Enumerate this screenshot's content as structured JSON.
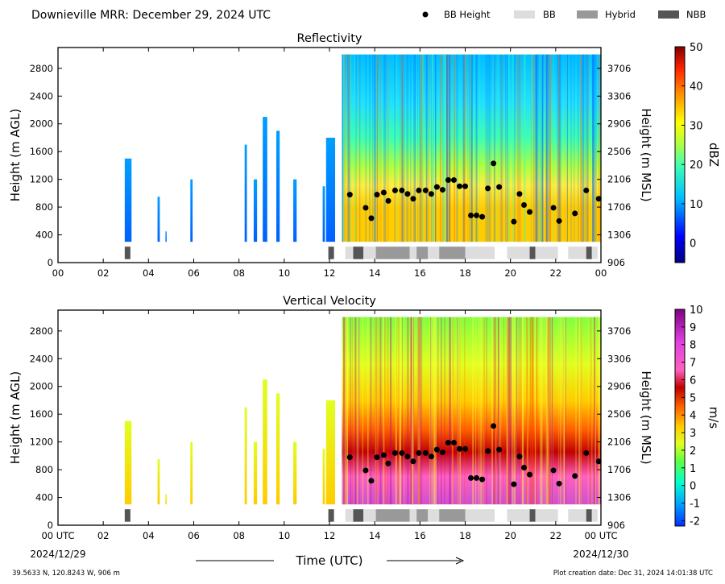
{
  "header": {
    "title": "Downieville MRR:  December 29, 2024 UTC",
    "legend": [
      {
        "label": "BB Height",
        "kind": "dot",
        "color": "#000000"
      },
      {
        "label": "BB",
        "kind": "box",
        "color": "#dddddd"
      },
      {
        "label": "Hybrid",
        "kind": "box",
        "color": "#999999"
      },
      {
        "label": "NBB",
        "kind": "box",
        "color": "#555555"
      }
    ]
  },
  "footer": {
    "location": "39.5633 N, 120.8243 W, 906 m",
    "creation": "Plot creation date: Dec 31, 2024 14:01:38 UTC",
    "xlabel": "Time (UTC)",
    "start_date": "2024/12/29",
    "end_date": "2024/12/30"
  },
  "colors": {
    "bb": "#dddddd",
    "hybrid": "#999999",
    "nbb": "#555555"
  },
  "chart_data": [
    {
      "type": "heatmap",
      "title": "Reflectivity",
      "ylabel": "Height (m AGL)",
      "ylabel_right": "Height (m MSL)",
      "colorbar_label": "dBZ",
      "colorbar_ticks": [
        "0",
        "10",
        "20",
        "30",
        "40",
        "50"
      ],
      "colorbar_range": [
        -5,
        50
      ],
      "x_ticks": [
        "00",
        "02",
        "04",
        "06",
        "08",
        "10",
        "12",
        "14",
        "16",
        "18",
        "20",
        "22",
        "00"
      ],
      "y_ticks": [
        "0",
        "400",
        "800",
        "1200",
        "1600",
        "2000",
        "2400",
        "2800"
      ],
      "y_ticks_right": [
        "906",
        "1306",
        "1706",
        "2106",
        "2506",
        "2906",
        "3306",
        "3706"
      ],
      "xlim": [
        0,
        24
      ],
      "ylim": [
        0,
        3100
      ]
    },
    {
      "type": "heatmap",
      "title": "Vertical Velocity",
      "ylabel": "Height (m AGL)",
      "ylabel_right": "Height (m MSL)",
      "colorbar_label": "m/s",
      "colorbar_ticks": [
        "-2",
        "-1",
        "0",
        "1",
        "2",
        "3",
        "4",
        "5",
        "6",
        "7",
        "8",
        "9",
        "10"
      ],
      "colorbar_range": [
        -2.3,
        10
      ],
      "x_ticks": [
        "00 UTC",
        "02",
        "04",
        "06",
        "08",
        "10",
        "12",
        "14",
        "16",
        "18",
        "20",
        "22",
        "00 UTC"
      ],
      "y_ticks": [
        "0",
        "400",
        "800",
        "1200",
        "1600",
        "2000",
        "2400",
        "2800"
      ],
      "y_ticks_right": [
        "906",
        "1306",
        "1706",
        "2106",
        "2506",
        "2906",
        "3306",
        "3706"
      ],
      "xlim": [
        0,
        24
      ],
      "ylim": [
        0,
        3100
      ]
    }
  ],
  "bb_points": [
    {
      "x": 12.9,
      "y": 980
    },
    {
      "x": 13.6,
      "y": 790
    },
    {
      "x": 13.85,
      "y": 640
    },
    {
      "x": 14.1,
      "y": 980
    },
    {
      "x": 14.4,
      "y": 1010
    },
    {
      "x": 14.6,
      "y": 890
    },
    {
      "x": 14.9,
      "y": 1040
    },
    {
      "x": 15.2,
      "y": 1040
    },
    {
      "x": 15.45,
      "y": 990
    },
    {
      "x": 15.7,
      "y": 920
    },
    {
      "x": 15.95,
      "y": 1040
    },
    {
      "x": 16.25,
      "y": 1040
    },
    {
      "x": 16.5,
      "y": 990
    },
    {
      "x": 16.75,
      "y": 1090
    },
    {
      "x": 17.0,
      "y": 1050
    },
    {
      "x": 17.25,
      "y": 1190
    },
    {
      "x": 17.5,
      "y": 1190
    },
    {
      "x": 17.75,
      "y": 1100
    },
    {
      "x": 18.0,
      "y": 1100
    },
    {
      "x": 18.25,
      "y": 680
    },
    {
      "x": 18.5,
      "y": 680
    },
    {
      "x": 18.75,
      "y": 660
    },
    {
      "x": 19.0,
      "y": 1070
    },
    {
      "x": 19.25,
      "y": 1430
    },
    {
      "x": 19.5,
      "y": 1090
    },
    {
      "x": 20.15,
      "y": 590
    },
    {
      "x": 20.4,
      "y": 990
    },
    {
      "x": 20.6,
      "y": 830
    },
    {
      "x": 20.85,
      "y": 730
    },
    {
      "x": 21.9,
      "y": 790
    },
    {
      "x": 22.15,
      "y": 600
    },
    {
      "x": 22.85,
      "y": 710
    },
    {
      "x": 23.35,
      "y": 1040
    },
    {
      "x": 23.9,
      "y": 920
    }
  ],
  "bb_segments": [
    {
      "start": 2.95,
      "end": 3.2,
      "type": "nbb"
    },
    {
      "start": 11.95,
      "end": 12.2,
      "type": "nbb"
    },
    {
      "start": 12.7,
      "end": 13.05,
      "type": "bb"
    },
    {
      "start": 13.05,
      "end": 13.5,
      "type": "nbb"
    },
    {
      "start": 13.5,
      "end": 14.05,
      "type": "bb"
    },
    {
      "start": 14.05,
      "end": 15.55,
      "type": "hybrid"
    },
    {
      "start": 15.55,
      "end": 15.85,
      "type": "bb"
    },
    {
      "start": 15.85,
      "end": 16.35,
      "type": "hybrid"
    },
    {
      "start": 16.35,
      "end": 16.85,
      "type": "bb"
    },
    {
      "start": 16.85,
      "end": 18.0,
      "type": "hybrid"
    },
    {
      "start": 18.0,
      "end": 19.3,
      "type": "bb"
    },
    {
      "start": 19.85,
      "end": 20.85,
      "type": "bb"
    },
    {
      "start": 20.85,
      "end": 21.1,
      "type": "nbb"
    },
    {
      "start": 21.1,
      "end": 22.1,
      "type": "bb"
    },
    {
      "start": 22.55,
      "end": 23.35,
      "type": "bb"
    },
    {
      "start": 23.35,
      "end": 23.6,
      "type": "nbb"
    },
    {
      "start": 23.6,
      "end": 23.85,
      "type": "bb"
    }
  ],
  "echo_columns": [
    {
      "start": 2.95,
      "end": 3.25,
      "top": 1500
    },
    {
      "start": 4.4,
      "end": 4.5,
      "top": 950
    },
    {
      "start": 4.75,
      "end": 4.8,
      "top": 450
    },
    {
      "start": 5.85,
      "end": 5.95,
      "top": 1200
    },
    {
      "start": 8.25,
      "end": 8.35,
      "top": 1700
    },
    {
      "start": 8.65,
      "end": 8.8,
      "top": 1200
    },
    {
      "start": 9.05,
      "end": 9.25,
      "top": 2100
    },
    {
      "start": 9.65,
      "end": 9.8,
      "top": 1900
    },
    {
      "start": 10.4,
      "end": 10.55,
      "top": 1200
    },
    {
      "start": 11.7,
      "end": 11.8,
      "top": 1100
    },
    {
      "start": 11.85,
      "end": 12.25,
      "top": 1800
    }
  ],
  "storm_interval": [
    12.55,
    24.0
  ]
}
